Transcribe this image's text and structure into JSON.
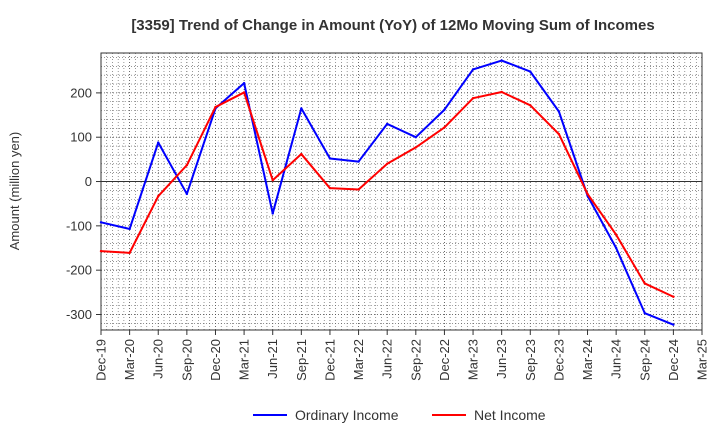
{
  "chart_data": {
    "type": "line",
    "title": "[3359]  Trend of Change in Amount (YoY) of 12Mo Moving Sum of Incomes",
    "xlabel": "",
    "ylabel": "Amount (million yen)",
    "ylim": [
      -335,
      290
    ],
    "yticks": [
      -300,
      -200,
      -100,
      0,
      100,
      200
    ],
    "grid": true,
    "legend_position": "bottom",
    "categories": [
      "Dec-19",
      "Mar-20",
      "Jun-20",
      "Sep-20",
      "Dec-20",
      "Mar-21",
      "Jun-21",
      "Sep-21",
      "Dec-21",
      "Mar-22",
      "Jun-22",
      "Sep-22",
      "Dec-22",
      "Mar-23",
      "Jun-23",
      "Sep-23",
      "Dec-23",
      "Mar-24",
      "Jun-24",
      "Sep-24",
      "Dec-24",
      "Mar-25"
    ],
    "series": [
      {
        "name": "Ordinary Income",
        "color": "#0000ff",
        "values": [
          -92,
          -107,
          88,
          -28,
          165,
          222,
          -72,
          165,
          52,
          45,
          130,
          100,
          162,
          253,
          273,
          248,
          158,
          -32,
          -150,
          -297,
          -323,
          null
        ]
      },
      {
        "name": "Net Income",
        "color": "#ff0000",
        "values": [
          -157,
          -161,
          -33,
          37,
          168,
          201,
          3,
          62,
          -15,
          -18,
          40,
          77,
          122,
          188,
          202,
          172,
          107,
          -28,
          -120,
          -230,
          -260,
          null
        ]
      }
    ]
  }
}
